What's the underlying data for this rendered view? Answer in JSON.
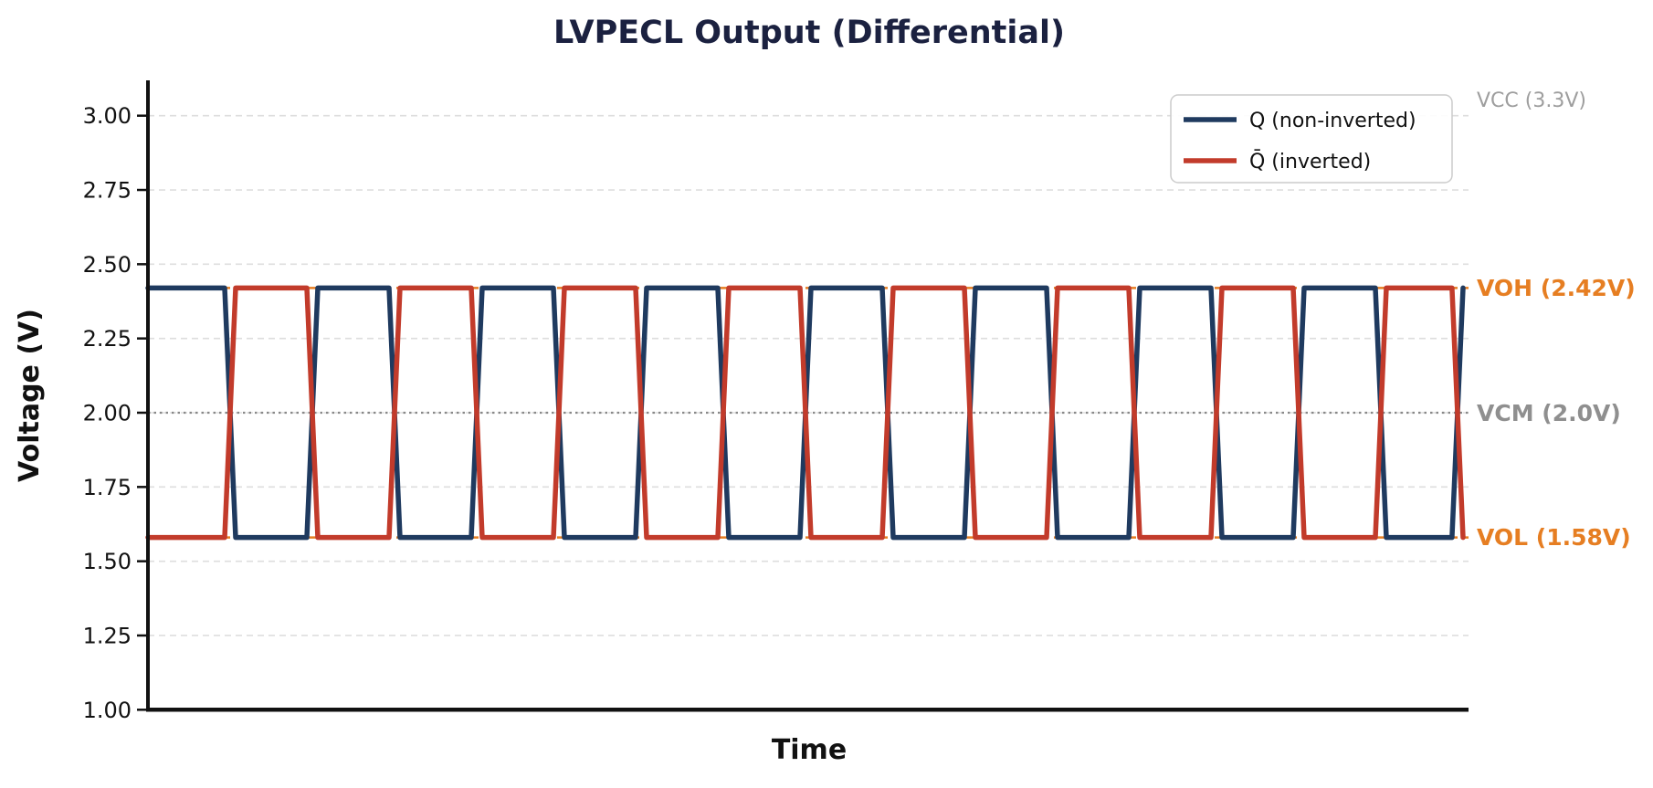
{
  "title": "LVPECL Output (Differential)",
  "colors": {
    "title_text": "#1b2140",
    "axis_text": "#111111",
    "spine": "#111111",
    "gridline": "#dedede",
    "legend_border": "#cccccc",
    "legend_bg": "#ffffff",
    "q_blue": "#1f3a5f",
    "qbar_red": "#c23b2b",
    "annotation_orange": "#e67e22",
    "annotation_gray": "#9e9e9e",
    "vcm_gray": "#8f8f8f",
    "vcm_line": "#888888"
  },
  "chart_data": {
    "type": "line",
    "title": "LVPECL Output (Differential)",
    "xlabel": "Time",
    "ylabel": "Voltage (V)",
    "ylim": [
      1.0,
      3.12
    ],
    "grid": true,
    "legend_position": "upper right",
    "yticks": [
      {
        "label": "3.00",
        "value": 3.0
      },
      {
        "label": "2.75",
        "value": 2.75
      },
      {
        "label": "2.50",
        "value": 2.5
      },
      {
        "label": "2.25",
        "value": 2.25
      },
      {
        "label": "2.00",
        "value": 2.0
      },
      {
        "label": "1.75",
        "value": 1.75
      },
      {
        "label": "1.50",
        "value": 1.5
      },
      {
        "label": "1.25",
        "value": 1.25
      },
      {
        "label": "1.00",
        "value": 1.0
      }
    ],
    "levels": {
      "vcc": 3.3,
      "voh": 2.42,
      "vcm": 2.0,
      "vol": 1.58
    },
    "cycles": 8,
    "half_periods": 16,
    "transition_halfwidth": 0.067,
    "series": [
      {
        "name": "Q (non-inverted)",
        "color": "#1f3a5f",
        "starts": "high",
        "high_v": 2.42,
        "low_v": 1.58
      },
      {
        "name": "Q̄ (inverted)",
        "color": "#c23b2b",
        "starts": "low",
        "high_v": 2.42,
        "low_v": 1.58
      }
    ],
    "reference_lines": [
      {
        "id": "vcc",
        "label": "VCC (3.3V)",
        "value": 3.3,
        "has_line": false,
        "style": "none",
        "color": "#9e9e9e",
        "line_color": "none",
        "bold": false
      },
      {
        "id": "voh",
        "label": "VOH (2.42V)",
        "value": 2.42,
        "has_line": true,
        "style": "dashed",
        "color": "#e67e22",
        "line_color": "#e67e22",
        "bold": true
      },
      {
        "id": "vcm",
        "label": "VCM (2.0V)",
        "value": 2.0,
        "has_line": true,
        "style": "dotted",
        "color": "#8f8f8f",
        "line_color": "#888888",
        "bold": true
      },
      {
        "id": "vol",
        "label": "VOL (1.58V)",
        "value": 1.58,
        "has_line": true,
        "style": "dashed",
        "color": "#e67e22",
        "line_color": "#e67e22",
        "bold": true
      }
    ]
  }
}
